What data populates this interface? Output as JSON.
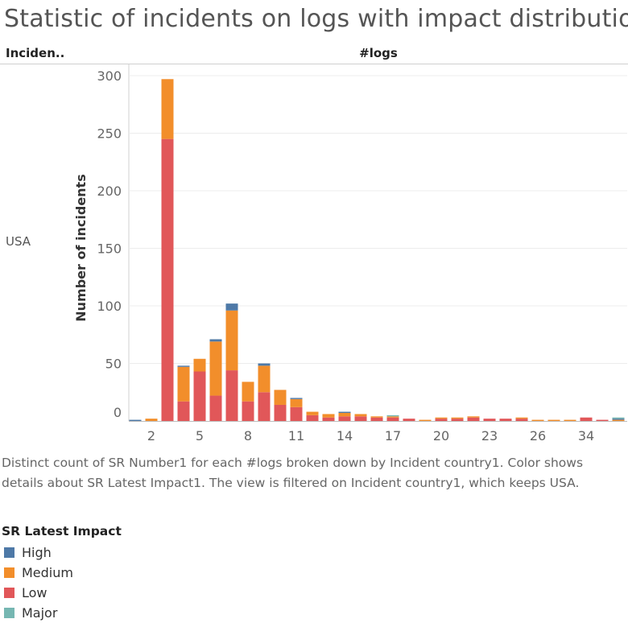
{
  "title": "Statistic of incidents on logs with impact distribution",
  "row_header": "Inciden..",
  "column_header": "#logs",
  "row_label": "USA",
  "caption": "Distinct count of SR Number1 for each #logs broken down by Incident country1.  Color shows details about SR Latest Impact1. The view is filtered on Incident country1, which keeps USA.",
  "legend": {
    "title": "SR Latest Impact",
    "items": [
      {
        "label": "High",
        "color": "#4e79a7"
      },
      {
        "label": "Medium",
        "color": "#f28e2b"
      },
      {
        "label": "Low",
        "color": "#e15759"
      },
      {
        "label": "Major",
        "color": "#76b7b2"
      }
    ]
  },
  "chart_data": {
    "type": "bar",
    "stacked": true,
    "ylabel": "Number of incidents",
    "ylim": [
      0,
      300
    ],
    "yticks": [
      0,
      50,
      100,
      150,
      200,
      250,
      300
    ],
    "x_ticks": [
      "2",
      "5",
      "8",
      "11",
      "14",
      "17",
      "20",
      "23",
      "26",
      "34"
    ],
    "categories": [
      "1",
      "2",
      "3",
      "4",
      "5",
      "6",
      "7",
      "8",
      "9",
      "10",
      "11",
      "12",
      "13",
      "14",
      "15",
      "16",
      "17",
      "18",
      "19",
      "20",
      "21",
      "22",
      "23",
      "24",
      "25",
      "26",
      "27",
      "28",
      "34",
      "36",
      "38"
    ],
    "series": [
      {
        "name": "Low",
        "color": "#e15759",
        "values": [
          0,
          0,
          245,
          17,
          43,
          22,
          44,
          17,
          25,
          14,
          12,
          5,
          3,
          4,
          4,
          3,
          3,
          2,
          0,
          2,
          2,
          3,
          2,
          2,
          2,
          0,
          0,
          0,
          3,
          1,
          0
        ]
      },
      {
        "name": "Medium",
        "color": "#f28e2b",
        "values": [
          0,
          2,
          52,
          30,
          11,
          47,
          52,
          17,
          23,
          13,
          7,
          3,
          3,
          3,
          2,
          1,
          1,
          0,
          1,
          1,
          1,
          1,
          0,
          0,
          1,
          1,
          1,
          1,
          0,
          0,
          1
        ]
      },
      {
        "name": "High",
        "color": "#4e79a7",
        "values": [
          1,
          0,
          0,
          1,
          0,
          2,
          6,
          0,
          2,
          0,
          1,
          0,
          0,
          1,
          0,
          0,
          0,
          0,
          0,
          0,
          0,
          0,
          0,
          0,
          0,
          0,
          0,
          0,
          0,
          0,
          1
        ]
      },
      {
        "name": "Major",
        "color": "#76b7b2",
        "values": [
          0,
          0,
          0,
          0,
          0,
          0,
          0,
          0,
          0,
          0,
          0,
          0,
          0,
          0,
          0,
          0,
          1,
          0,
          0,
          0,
          0,
          0,
          0,
          0,
          0,
          0,
          0,
          0,
          0,
          0,
          1
        ]
      }
    ]
  }
}
